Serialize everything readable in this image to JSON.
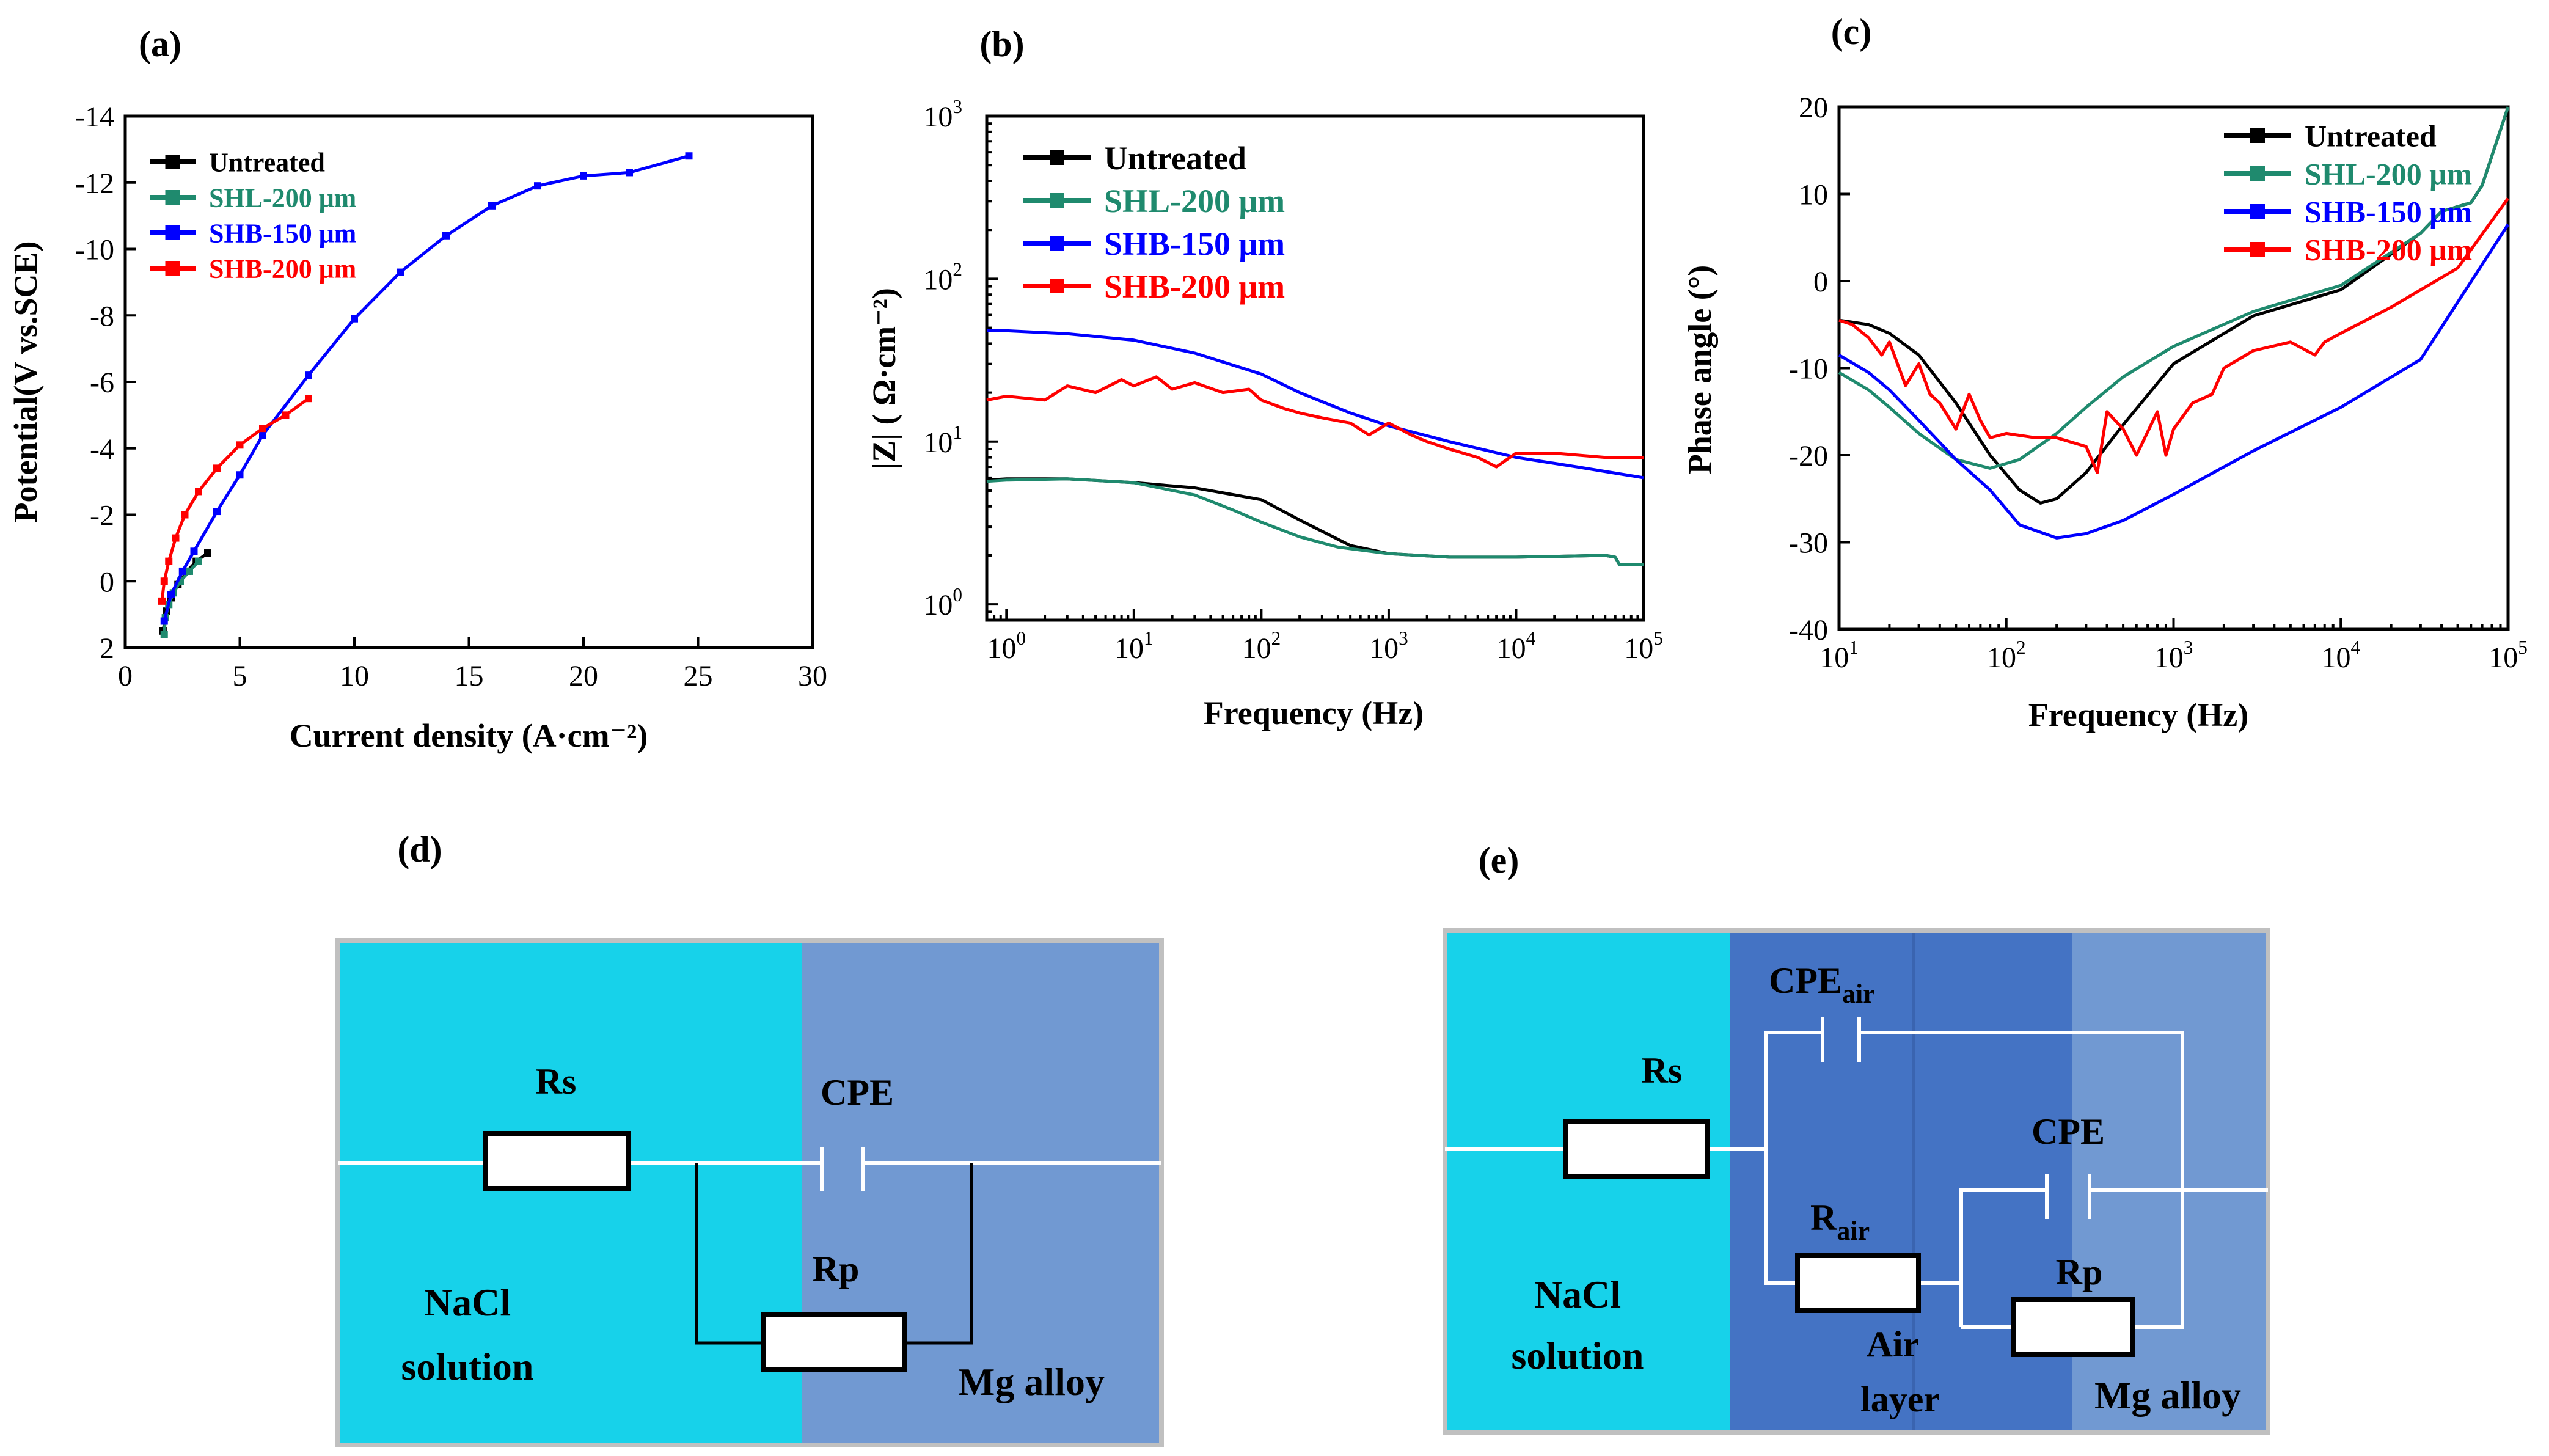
{
  "chart_data": [
    {
      "id": "a",
      "type": "line",
      "panel_label": "(a)",
      "xlabel": "Current density (A·cm⁻²)",
      "ylabel": "Potential(V vs.SCE)",
      "xlim": [
        0,
        30
      ],
      "ylim": [
        2,
        -14
      ],
      "x_ticks": [
        0,
        5,
        10,
        15,
        20,
        25,
        30
      ],
      "y_ticks": [
        2,
        0,
        -2,
        -4,
        -6,
        -8,
        -10,
        -12,
        -14
      ],
      "x_tick_labels": [
        "0",
        "5",
        "10",
        "15",
        "20",
        "25",
        "30"
      ],
      "y_tick_labels": [
        "2",
        "0",
        "-2",
        "-4",
        "-6",
        "-8",
        "-10",
        "-12",
        "-14"
      ],
      "legend": [
        "Untreated",
        "SHL-200 μm",
        "SHB-150 μm",
        "SHB-200 μm"
      ],
      "series": [
        {
          "name": "Untreated",
          "color": "#000000",
          "x": [
            1.65,
            1.8,
            2.0,
            2.3,
            2.7,
            3.1,
            3.6
          ],
          "y": [
            1.5,
            0.9,
            0.5,
            0.1,
            -0.3,
            -0.6,
            -0.85
          ]
        },
        {
          "name": "SHL-200 μm",
          "color": "#1f8a6e",
          "x": [
            1.7,
            1.75,
            1.9,
            2.1,
            2.4,
            2.8,
            3.2
          ],
          "y": [
            1.6,
            1.1,
            0.7,
            0.35,
            0.0,
            -0.3,
            -0.6
          ]
        },
        {
          "name": "SHB-150 μm",
          "color": "#0000ff",
          "x": [
            1.7,
            2.0,
            2.5,
            3.0,
            4.0,
            5.0,
            6.0,
            8.0,
            10.0,
            12.0,
            14.0,
            16.0,
            18.0,
            20.0,
            22.0,
            24.6
          ],
          "y": [
            1.2,
            0.4,
            -0.3,
            -0.9,
            -2.1,
            -3.2,
            -4.4,
            -6.2,
            -7.9,
            -9.3,
            -10.4,
            -11.3,
            -11.9,
            -12.2,
            -12.3,
            -12.8
          ]
        },
        {
          "name": "SHB-200 μm",
          "color": "#ff0000",
          "x": [
            1.6,
            1.7,
            1.9,
            2.2,
            2.6,
            3.2,
            4.0,
            5.0,
            6.0,
            7.0,
            8.0
          ],
          "y": [
            0.6,
            0.0,
            -0.6,
            -1.3,
            -2.0,
            -2.7,
            -3.4,
            -4.1,
            -4.6,
            -5.0,
            -5.5
          ]
        }
      ]
    },
    {
      "id": "b",
      "type": "line",
      "panel_label": "(b)",
      "xlabel": "Frequency (Hz)",
      "ylabel": "|Z| ( Ω·cm⁻²)",
      "xscale": "log",
      "yscale": "log",
      "xlim": [
        0.7,
        100000
      ],
      "ylim": [
        0.8,
        1000
      ],
      "x_ticks": [
        1,
        10,
        100,
        1000,
        10000,
        100000
      ],
      "y_ticks": [
        1,
        10,
        100,
        1000
      ],
      "x_tick_labels": [
        "10",
        "10",
        "10",
        "10",
        "10",
        "10"
      ],
      "x_tick_exponents": [
        "0",
        "1",
        "2",
        "3",
        "4",
        "5"
      ],
      "y_tick_labels": [
        "10",
        "10",
        "10",
        "10"
      ],
      "y_tick_exponents": [
        "0",
        "1",
        "2",
        "3"
      ],
      "legend": [
        "Untreated",
        "SHL-200 μm",
        "SHB-150 μm",
        "SHB-200 μm"
      ],
      "series": [
        {
          "name": "Untreated",
          "color": "#000000",
          "x": [
            0.7,
            1,
            3,
            10,
            30,
            100,
            200,
            500,
            1000,
            3000,
            10000,
            50000,
            60000,
            65000,
            100000
          ],
          "y": [
            5.8,
            5.9,
            5.9,
            5.6,
            5.2,
            4.4,
            3.3,
            2.3,
            2.05,
            1.95,
            1.95,
            2.0,
            1.95,
            1.75,
            1.75
          ]
        },
        {
          "name": "SHL-200 μm",
          "color": "#1f8a6e",
          "x": [
            0.7,
            1,
            3,
            10,
            30,
            60,
            100,
            200,
            400,
            1000,
            3000,
            10000,
            50000,
            60000,
            65000,
            100000
          ],
          "y": [
            5.7,
            5.8,
            5.9,
            5.6,
            4.7,
            3.8,
            3.2,
            2.6,
            2.25,
            2.05,
            1.95,
            1.95,
            2.0,
            1.95,
            1.75,
            1.75
          ]
        },
        {
          "name": "SHB-150 μm",
          "color": "#0000ff",
          "x": [
            0.7,
            1,
            3,
            10,
            30,
            100,
            200,
            500,
            1000,
            3000,
            10000,
            30000,
            100000
          ],
          "y": [
            48,
            48,
            46,
            42,
            35,
            26,
            20,
            15,
            12.5,
            10,
            8,
            7,
            6
          ]
        },
        {
          "name": "SHB-200 μm",
          "color": "#ff0000",
          "x": [
            0.7,
            1,
            2,
            3,
            5,
            8,
            10,
            15,
            20,
            30,
            50,
            80,
            100,
            150,
            200,
            300,
            500,
            700,
            1000,
            1500,
            2000,
            3000,
            5000,
            7000,
            10000,
            20000,
            50000,
            100000
          ],
          "y": [
            18,
            19,
            18,
            22,
            20,
            24,
            22,
            25,
            21,
            23,
            20,
            21,
            18,
            16,
            15,
            14,
            13,
            11,
            13,
            11,
            10,
            9,
            8,
            7,
            8.5,
            8.5,
            8,
            8
          ]
        }
      ]
    },
    {
      "id": "c",
      "type": "line",
      "panel_label": "(c)",
      "xlabel": "Frequency (Hz)",
      "ylabel": "Phase angle (°)",
      "xscale": "log",
      "xlim": [
        10,
        100000
      ],
      "ylim": [
        -40,
        20
      ],
      "x_ticks": [
        10,
        100,
        1000,
        10000,
        100000
      ],
      "y_ticks": [
        -40,
        -30,
        -20,
        -10,
        0,
        10,
        20
      ],
      "x_tick_labels": [
        "10",
        "10",
        "10",
        "10",
        "10"
      ],
      "x_tick_exponents": [
        "1",
        "2",
        "3",
        "4",
        "5"
      ],
      "y_tick_labels": [
        "-40",
        "-30",
        "-20",
        "-10",
        "0",
        "10",
        "20"
      ],
      "legend": [
        "Untreated",
        "SHL-200 μm",
        "SHB-150 μm",
        "SHB-200 μm"
      ],
      "series": [
        {
          "name": "Untreated",
          "color": "#000000",
          "x": [
            10,
            15,
            20,
            30,
            50,
            80,
            120,
            160,
            200,
            300,
            500,
            1000,
            3000,
            10000,
            30000,
            40000,
            60000,
            70000,
            100000
          ],
          "y": [
            -4.5,
            -5,
            -6,
            -8.5,
            -14,
            -20,
            -24,
            -25.5,
            -25,
            -22,
            -16.5,
            -9.5,
            -4,
            -1,
            5.5,
            8,
            9,
            11,
            20
          ]
        },
        {
          "name": "SHL-200 μm",
          "color": "#1f8a6e",
          "x": [
            10,
            15,
            20,
            30,
            50,
            80,
            120,
            200,
            300,
            500,
            1000,
            3000,
            10000,
            30000,
            40000,
            60000,
            70000,
            100000
          ],
          "y": [
            -10.5,
            -12.5,
            -14.5,
            -17.5,
            -20.5,
            -21.5,
            -20.5,
            -17.5,
            -14.5,
            -11,
            -7.5,
            -3.5,
            -0.5,
            5.5,
            8,
            9,
            11,
            20
          ]
        },
        {
          "name": "SHB-150 μm",
          "color": "#0000ff",
          "x": [
            10,
            15,
            20,
            30,
            50,
            80,
            120,
            200,
            300,
            500,
            1000,
            3000,
            10000,
            30000,
            100000
          ],
          "y": [
            -8.5,
            -10.5,
            -12.5,
            -16,
            -20.5,
            -24,
            -28,
            -29.5,
            -29,
            -27.5,
            -24.5,
            -19.5,
            -14.5,
            -9,
            6.5
          ]
        },
        {
          "name": "SHB-200 μm",
          "color": "#ff0000",
          "x": [
            10,
            12,
            15,
            18,
            20,
            25,
            30,
            35,
            40,
            50,
            60,
            70,
            80,
            100,
            150,
            200,
            300,
            350,
            400,
            500,
            600,
            800,
            900,
            1000,
            1300,
            1700,
            2000,
            3000,
            5000,
            7000,
            8000,
            10000,
            20000,
            50000,
            100000
          ],
          "y": [
            -4.5,
            -5,
            -6.5,
            -8.5,
            -7,
            -12,
            -9.5,
            -13,
            -14,
            -17,
            -13,
            -16,
            -18,
            -17.5,
            -18,
            -18,
            -19,
            -22,
            -15,
            -17,
            -20,
            -15,
            -20,
            -17,
            -14,
            -13,
            -10,
            -8,
            -7,
            -8.5,
            -7,
            -6,
            -3,
            1.5,
            9.5
          ]
        }
      ]
    }
  ],
  "panels": {
    "a_label": "(a)",
    "b_label": "(b)",
    "c_label": "(c)",
    "d_label": "(d)",
    "e_label": "(e)"
  },
  "circuit_d": {
    "rs_label": "Rs",
    "cpe_label": "CPE",
    "rp_label": "Rp",
    "nacl_line1": "NaCl",
    "nacl_line2": "solution",
    "mg_label": "Mg alloy",
    "colors": {
      "solution": "#17d2ea",
      "alloy": "#7199d2",
      "frame": "#c0c0c0"
    }
  },
  "circuit_e": {
    "rs_label": "Rs",
    "cpe_air_main": "CPE",
    "cpe_air_sub": "air",
    "r_air_main": "R",
    "r_air_sub": "air",
    "cpe_label": "CPE",
    "rp_label": "Rp",
    "nacl_line1": "NaCl",
    "nacl_line2": "solution",
    "air_line1": "Air",
    "air_line2": "layer",
    "mg_label": "Mg alloy",
    "colors": {
      "solution": "#17d2ea",
      "air": "#4473c4",
      "alloy": "#7199d2",
      "frame": "#c0c0c0"
    }
  }
}
